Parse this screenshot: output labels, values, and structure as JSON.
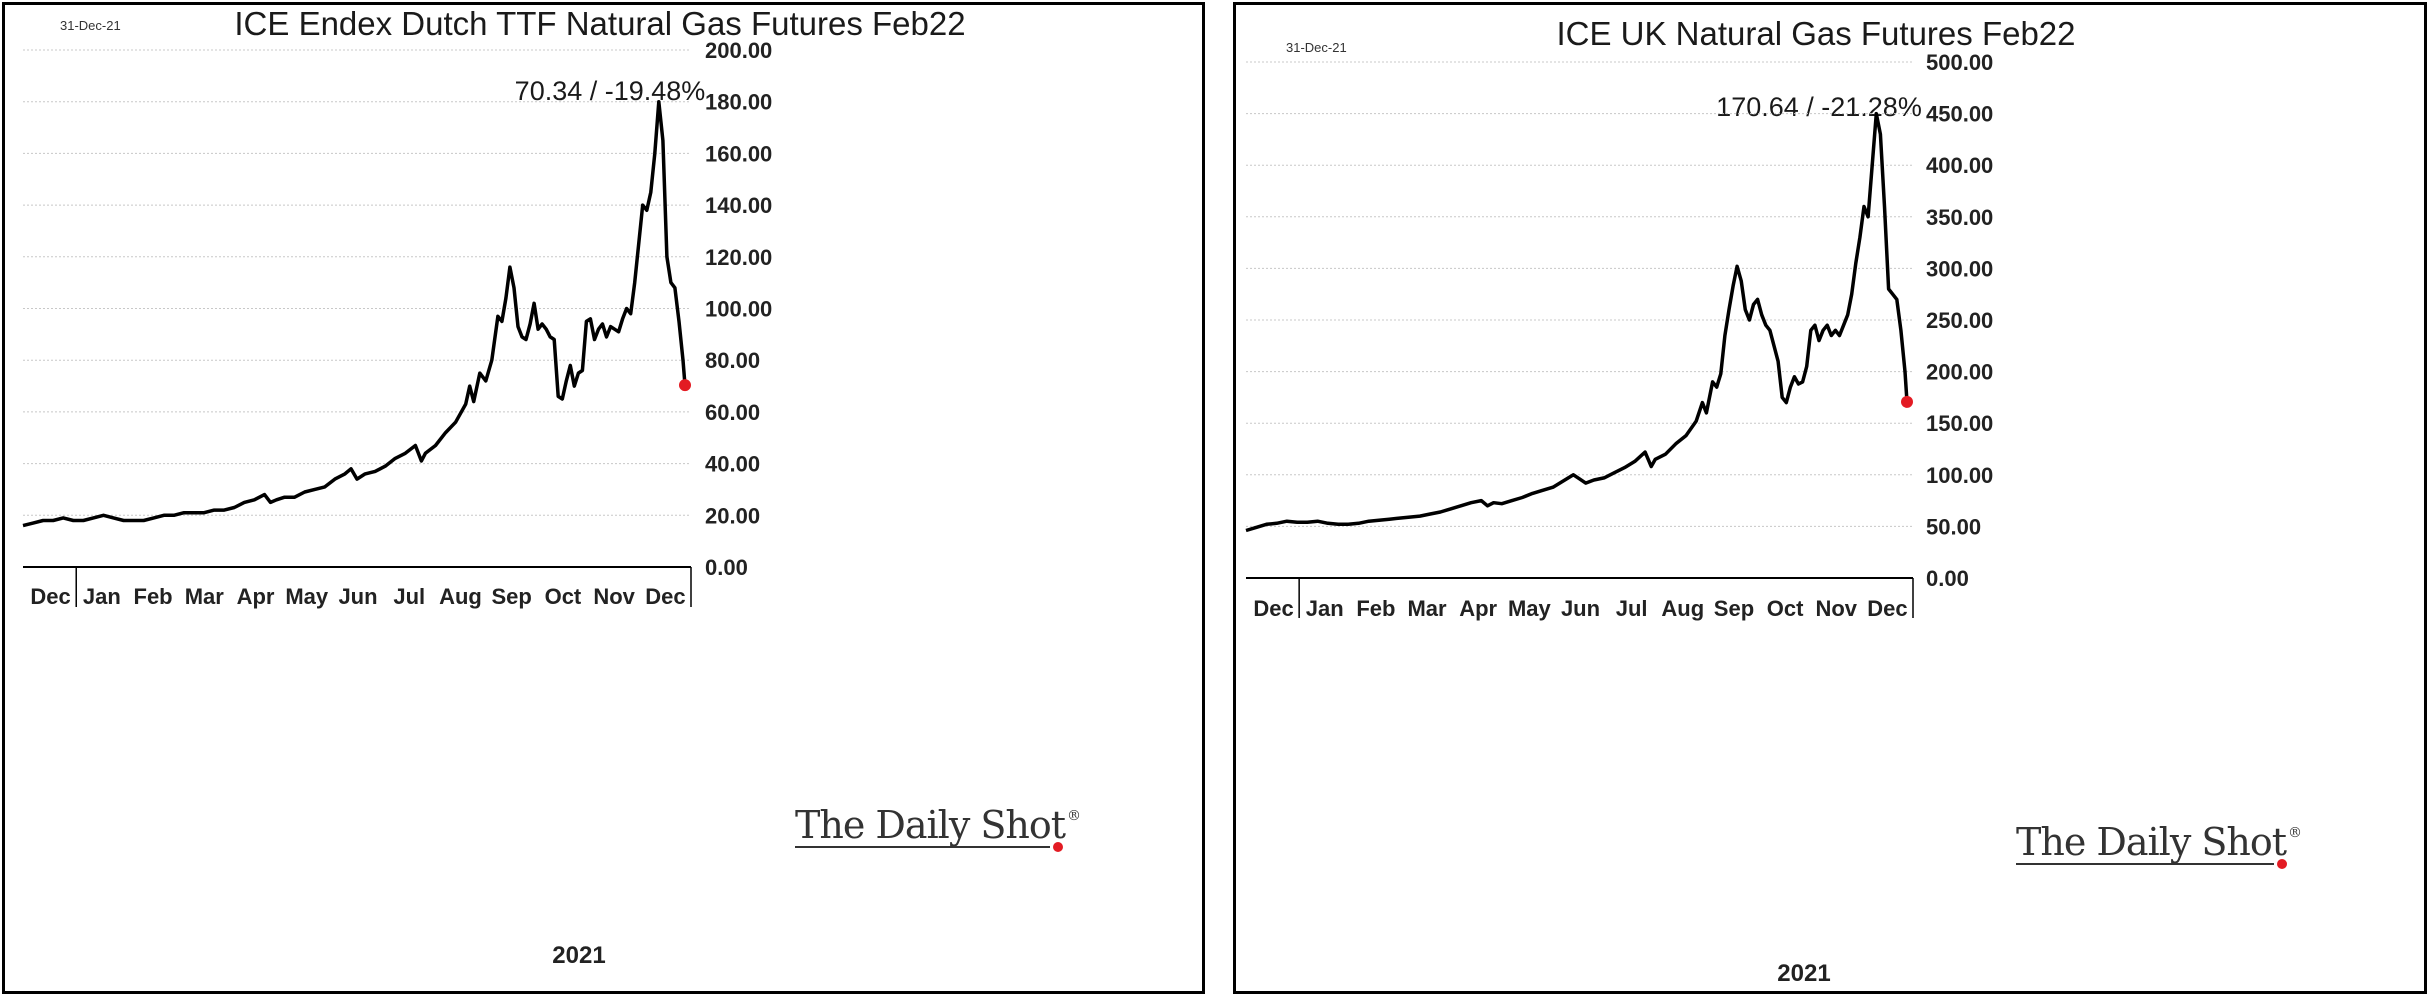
{
  "chart_data": [
    {
      "type": "line",
      "title": "ICE Endex Dutch TTF Natural Gas Futures Feb22",
      "date_label": "31-Dec-21",
      "stat_label": "70.34  /  -19.48%",
      "ylim": [
        0,
        200
      ],
      "y_ticks": [
        "0.00",
        "20.00",
        "40.00",
        "60.00",
        "80.00",
        "100.00",
        "120.00",
        "140.00",
        "160.00",
        "180.00",
        "200.00"
      ],
      "x_months": [
        "Dec",
        "Jan",
        "Feb",
        "Mar",
        "Apr",
        "May",
        "Jun",
        "Jul",
        "Aug",
        "Sep",
        "Oct",
        "Nov",
        "Dec"
      ],
      "xlabel": "2021",
      "brand": "The Daily Shot",
      "brand_mark": "®",
      "last_point_color": "#e31b23",
      "grid": true,
      "series": [
        {
          "values": [
            [
              0,
              16
            ],
            [
              5,
              17
            ],
            [
              10,
              18
            ],
            [
              15,
              18
            ],
            [
              20,
              19
            ],
            [
              25,
              18
            ],
            [
              30,
              18
            ],
            [
              35,
              19
            ],
            [
              40,
              20
            ],
            [
              45,
              19
            ],
            [
              50,
              18
            ],
            [
              55,
              18
            ],
            [
              60,
              18
            ],
            [
              65,
              19
            ],
            [
              70,
              20
            ],
            [
              75,
              20
            ],
            [
              80,
              21
            ],
            [
              85,
              21
            ],
            [
              90,
              21
            ],
            [
              95,
              22
            ],
            [
              100,
              22
            ],
            [
              105,
              23
            ],
            [
              110,
              25
            ],
            [
              115,
              26
            ],
            [
              120,
              28
            ],
            [
              123,
              25
            ],
            [
              126,
              26
            ],
            [
              130,
              27
            ],
            [
              135,
              27
            ],
            [
              140,
              29
            ],
            [
              145,
              30
            ],
            [
              150,
              31
            ],
            [
              155,
              34
            ],
            [
              160,
              36
            ],
            [
              163,
              38
            ],
            [
              166,
              34
            ],
            [
              170,
              36
            ],
            [
              175,
              37
            ],
            [
              180,
              39
            ],
            [
              185,
              42
            ],
            [
              190,
              44
            ],
            [
              195,
              47
            ],
            [
              198,
              41
            ],
            [
              200,
              44
            ],
            [
              205,
              47
            ],
            [
              210,
              52
            ],
            [
              215,
              56
            ],
            [
              220,
              63
            ],
            [
              222,
              70
            ],
            [
              224,
              64
            ],
            [
              227,
              75
            ],
            [
              230,
              72
            ],
            [
              233,
              80
            ],
            [
              236,
              97
            ],
            [
              238,
              95
            ],
            [
              240,
              104
            ],
            [
              242,
              116
            ],
            [
              244,
              108
            ],
            [
              246,
              93
            ],
            [
              248,
              89
            ],
            [
              250,
              88
            ],
            [
              252,
              94
            ],
            [
              254,
              102
            ],
            [
              256,
              92
            ],
            [
              258,
              94
            ],
            [
              260,
              92
            ],
            [
              262,
              89
            ],
            [
              264,
              88
            ],
            [
              266,
              66
            ],
            [
              268,
              65
            ],
            [
              270,
              72
            ],
            [
              272,
              78
            ],
            [
              274,
              70
            ],
            [
              276,
              75
            ],
            [
              278,
              76
            ],
            [
              280,
              95
            ],
            [
              282,
              96
            ],
            [
              284,
              88
            ],
            [
              286,
              92
            ],
            [
              288,
              94
            ],
            [
              290,
              89
            ],
            [
              292,
              93
            ],
            [
              294,
              92
            ],
            [
              296,
              91
            ],
            [
              298,
              96
            ],
            [
              300,
              100
            ],
            [
              302,
              98
            ],
            [
              304,
              110
            ],
            [
              306,
              125
            ],
            [
              308,
              140
            ],
            [
              310,
              138
            ],
            [
              312,
              145
            ],
            [
              314,
              160
            ],
            [
              316,
              180
            ],
            [
              318,
              165
            ],
            [
              320,
              120
            ],
            [
              322,
              110
            ],
            [
              324,
              108
            ],
            [
              326,
              95
            ],
            [
              328,
              80
            ],
            [
              329,
              70.34
            ]
          ]
        }
      ]
    },
    {
      "type": "line",
      "title": "ICE UK Natural Gas Futures Feb22",
      "date_label": "31-Dec-21",
      "stat_label": "170.64  /  -21.28%",
      "ylim": [
        0,
        500
      ],
      "y_ticks": [
        "0.00",
        "50.00",
        "100.00",
        "150.00",
        "200.00",
        "250.00",
        "300.00",
        "350.00",
        "400.00",
        "450.00",
        "500.00"
      ],
      "x_months": [
        "Dec",
        "Jan",
        "Feb",
        "Mar",
        "Apr",
        "May",
        "Jun",
        "Jul",
        "Aug",
        "Sep",
        "Oct",
        "Nov",
        "Dec"
      ],
      "xlabel": "2021",
      "brand": "The Daily Shot",
      "brand_mark": "®",
      "last_point_color": "#e31b23",
      "grid": true,
      "series": [
        {
          "values": [
            [
              0,
              46
            ],
            [
              5,
              49
            ],
            [
              10,
              52
            ],
            [
              15,
              53
            ],
            [
              20,
              55
            ],
            [
              25,
              54
            ],
            [
              30,
              54
            ],
            [
              35,
              55
            ],
            [
              40,
              53
            ],
            [
              45,
              52
            ],
            [
              50,
              52
            ],
            [
              55,
              53
            ],
            [
              60,
              55
            ],
            [
              65,
              56
            ],
            [
              70,
              57
            ],
            [
              75,
              58
            ],
            [
              80,
              59
            ],
            [
              85,
              60
            ],
            [
              90,
              62
            ],
            [
              95,
              64
            ],
            [
              100,
              67
            ],
            [
              105,
              70
            ],
            [
              110,
              73
            ],
            [
              115,
              75
            ],
            [
              118,
              70
            ],
            [
              121,
              73
            ],
            [
              125,
              72
            ],
            [
              130,
              75
            ],
            [
              135,
              78
            ],
            [
              140,
              82
            ],
            [
              145,
              85
            ],
            [
              150,
              88
            ],
            [
              155,
              94
            ],
            [
              160,
              100
            ],
            [
              163,
              96
            ],
            [
              166,
              92
            ],
            [
              170,
              95
            ],
            [
              175,
              97
            ],
            [
              180,
              102
            ],
            [
              185,
              107
            ],
            [
              190,
              113
            ],
            [
              195,
              122
            ],
            [
              198,
              108
            ],
            [
              200,
              115
            ],
            [
              205,
              120
            ],
            [
              210,
              130
            ],
            [
              215,
              138
            ],
            [
              220,
              152
            ],
            [
              223,
              170
            ],
            [
              225,
              160
            ],
            [
              228,
              190
            ],
            [
              230,
              185
            ],
            [
              232,
              198
            ],
            [
              234,
              235
            ],
            [
              236,
              260
            ],
            [
              238,
              283
            ],
            [
              240,
              302
            ],
            [
              242,
              288
            ],
            [
              244,
              260
            ],
            [
              246,
              250
            ],
            [
              248,
              265
            ],
            [
              250,
              270
            ],
            [
              252,
              255
            ],
            [
              254,
              245
            ],
            [
              256,
              240
            ],
            [
              258,
              225
            ],
            [
              260,
              210
            ],
            [
              262,
              175
            ],
            [
              264,
              170
            ],
            [
              266,
              185
            ],
            [
              268,
              195
            ],
            [
              270,
              188
            ],
            [
              272,
              190
            ],
            [
              274,
              205
            ],
            [
              276,
              240
            ],
            [
              278,
              245
            ],
            [
              280,
              230
            ],
            [
              282,
              240
            ],
            [
              284,
              245
            ],
            [
              286,
              235
            ],
            [
              288,
              240
            ],
            [
              290,
              235
            ],
            [
              292,
              245
            ],
            [
              294,
              255
            ],
            [
              296,
              275
            ],
            [
              298,
              305
            ],
            [
              300,
              330
            ],
            [
              302,
              360
            ],
            [
              304,
              350
            ],
            [
              306,
              400
            ],
            [
              308,
              450
            ],
            [
              310,
              430
            ],
            [
              312,
              360
            ],
            [
              314,
              280
            ],
            [
              316,
              275
            ],
            [
              318,
              270
            ],
            [
              320,
              240
            ],
            [
              322,
              200
            ],
            [
              323,
              170.64
            ]
          ]
        }
      ]
    }
  ]
}
